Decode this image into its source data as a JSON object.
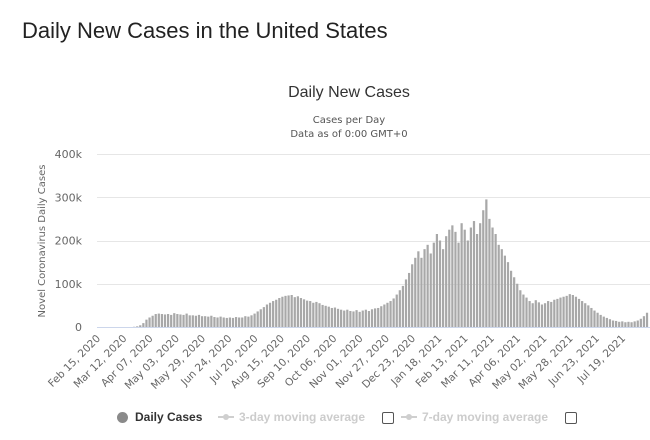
{
  "page": {
    "title": "Daily New Cases in the United States"
  },
  "chart_data": {
    "type": "bar",
    "title": "Daily New Cases",
    "subtitle_1": "Cases per Day",
    "subtitle_2": "Data as of 0:00 GMT+0",
    "xlabel": "",
    "ylabel": "Novel Coronavirus Daily Cases",
    "ylim": [
      0,
      400000
    ],
    "y_ticks": [
      0,
      100000,
      200000,
      300000,
      400000
    ],
    "y_tick_labels": [
      "0",
      "100k",
      "200k",
      "300k",
      "400k"
    ],
    "x_tick_labels": [
      "Feb 15, 2020",
      "Mar 12, 2020",
      "Apr 07, 2020",
      "May 03, 2020",
      "May 29, 2020",
      "Jun 24, 2020",
      "Jul 20, 2020",
      "Aug 15, 2020",
      "Sep 10, 2020",
      "Oct 06, 2020",
      "Nov 01, 2020",
      "Nov 27, 2020",
      "Dec 23, 2020",
      "Jan 18, 2021",
      "Feb 13, 2021",
      "Mar 11, 2021",
      "Apr 06, 2021",
      "May 02, 2021",
      "May 28, 2021",
      "Jun 23, 2021",
      "Jul 19, 2021"
    ],
    "start_date": "2020-02-15",
    "grid": true,
    "legend_position": "bottom",
    "bar_color": "#a8a8a8",
    "series": [
      {
        "name": "Daily Cases",
        "sampling": "every 2 days",
        "values": [
          0,
          0,
          0,
          0,
          0,
          0,
          0,
          0,
          0,
          0,
          0,
          500,
          1500,
          4000,
          9000,
          17000,
          22000,
          26000,
          30000,
          31000,
          30000,
          29000,
          30000,
          28000,
          32000,
          30000,
          29000,
          28000,
          31000,
          27000,
          27000,
          26000,
          28000,
          25000,
          25000,
          24000,
          26000,
          23000,
          22000,
          24000,
          22000,
          21000,
          22000,
          21000,
          23000,
          22000,
          22000,
          25000,
          24000,
          27000,
          31000,
          36000,
          41000,
          46000,
          52000,
          56000,
          60000,
          63000,
          67000,
          70000,
          72000,
          73000,
          74000,
          69000,
          71000,
          67000,
          64000,
          61000,
          60000,
          56000,
          58000,
          55000,
          51000,
          49000,
          47000,
          44000,
          45000,
          42000,
          40000,
          38000,
          40000,
          37000,
          36000,
          39000,
          35000,
          38000,
          40000,
          37000,
          41000,
          43000,
          44000,
          48000,
          52000,
          56000,
          60000,
          66000,
          75000,
          85000,
          95000,
          110000,
          125000,
          145000,
          160000,
          175000,
          160000,
          180000,
          190000,
          170000,
          195000,
          215000,
          200000,
          180000,
          210000,
          225000,
          235000,
          220000,
          195000,
          240000,
          225000,
          200000,
          230000,
          245000,
          215000,
          240000,
          270000,
          295000,
          250000,
          230000,
          215000,
          190000,
          180000,
          165000,
          150000,
          130000,
          115000,
          100000,
          85000,
          75000,
          68000,
          60000,
          55000,
          62000,
          57000,
          52000,
          55000,
          60000,
          58000,
          63000,
          65000,
          68000,
          70000,
          72000,
          76000,
          74000,
          70000,
          65000,
          60000,
          55000,
          50000,
          44000,
          38000,
          33000,
          28000,
          24000,
          21000,
          18000,
          15000,
          14000,
          12000,
          13000,
          11000,
          12000,
          11000,
          13000,
          15000,
          19000,
          25000,
          33000
        ]
      }
    ]
  },
  "legend": {
    "items": [
      {
        "label": "Daily Cases"
      },
      {
        "label": "3-day moving average"
      },
      {
        "label": "7-day moving average"
      }
    ]
  },
  "colors": {
    "bar": "#a8a8a8",
    "grid": "#e6e6e6",
    "axis_text": "#666666",
    "legend_active": "#333333",
    "legend_inactive": "#cccccc"
  }
}
